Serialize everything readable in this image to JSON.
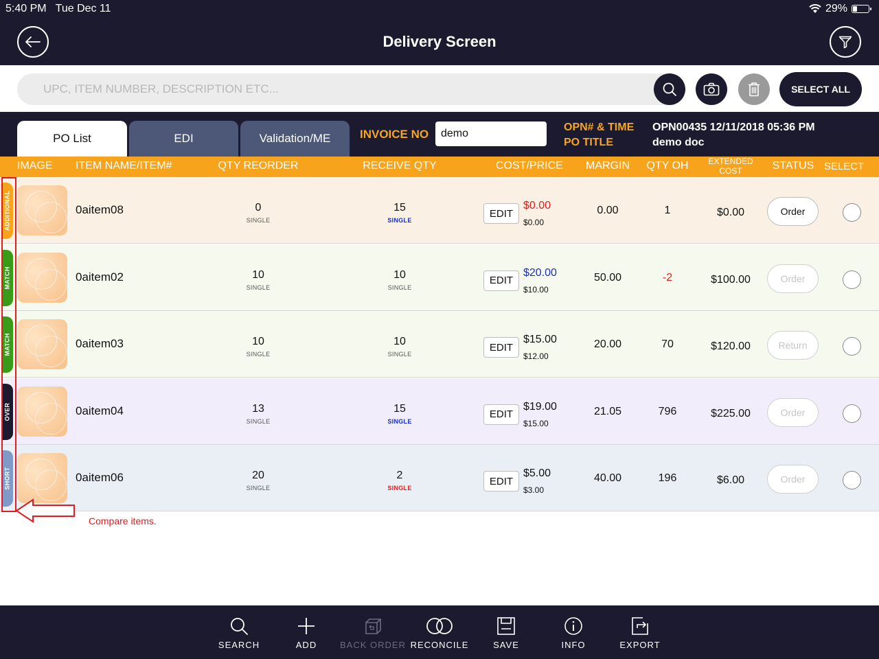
{
  "status_bar": {
    "time": "5:40 PM",
    "date": "Tue Dec 11",
    "battery": "29%",
    "battery_level": 0.29
  },
  "header": {
    "title": "Delivery Screen",
    "back_icon": "arrow-left-icon",
    "filter_icon": "funnel-icon"
  },
  "search": {
    "placeholder": "UPC, ITEM NUMBER, DESCRIPTION ETC...",
    "value": "",
    "select_all_label": "SELECT ALL"
  },
  "tabs": [
    {
      "label": "PO List",
      "active": true
    },
    {
      "label": "EDI",
      "active": false
    },
    {
      "label": "Validation/ME",
      "active": false
    }
  ],
  "invoice": {
    "label": "INVOICE NO",
    "value": "demo"
  },
  "po_info": {
    "opn_label": "OPN# & TIME",
    "title_label": "PO TITLE",
    "opn_value": "OPN00435  12/11/2018 05:36 PM",
    "title_value": "demo doc"
  },
  "columns": {
    "image": "IMAGE",
    "item": "ITEM NAME/ITEM#",
    "qty_reorder": "QTY REORDER",
    "receive_qty": "RECEIVE QTY",
    "cost_price": "COST/PRICE",
    "margin": "MARGIN",
    "qty_oh": "QTY OH",
    "extended_cost_1": "EXTENDED",
    "extended_cost_2": "COST",
    "status": "STATUS",
    "select": "SELECT"
  },
  "edit_label": "EDIT",
  "rows": [
    {
      "tag": "ADDITIONAL",
      "tag_color": "#f8a31c",
      "bg": "#faf1e4",
      "name": "0aitem08",
      "qty_reorder": "0",
      "qty_reorder_unit": "SINGLE",
      "receive_qty": "15",
      "receive_unit": "SINGLE",
      "receive_unit_style": "blue",
      "price": "$0.00",
      "price_style": "red",
      "cost": "$0.00",
      "margin": "0.00",
      "qty_oh": "1",
      "qty_oh_style": "",
      "extended_cost": "$0.00",
      "status": "Order",
      "status_style": ""
    },
    {
      "tag": "MATCH",
      "tag_color": "#3a9a1a",
      "bg": "#f6faee",
      "name": "0aitem02",
      "qty_reorder": "10",
      "qty_reorder_unit": "SINGLE",
      "receive_qty": "10",
      "receive_unit": "SINGLE",
      "receive_unit_style": "",
      "price": "$20.00",
      "price_style": "blue",
      "cost": "$10.00",
      "margin": "50.00",
      "qty_oh": "-2",
      "qty_oh_style": "neg",
      "extended_cost": "$100.00",
      "status": "Order",
      "status_style": "dim"
    },
    {
      "tag": "MATCH",
      "tag_color": "#3a9a1a",
      "bg": "#f6faee",
      "name": "0aitem03",
      "qty_reorder": "10",
      "qty_reorder_unit": "SINGLE",
      "receive_qty": "10",
      "receive_unit": "SINGLE",
      "receive_unit_style": "",
      "price": "$15.00",
      "price_style": "",
      "cost": "$12.00",
      "margin": "20.00",
      "qty_oh": "70",
      "qty_oh_style": "",
      "extended_cost": "$120.00",
      "status": "Return",
      "status_style": "dim"
    },
    {
      "tag": "OVER",
      "tag_color": "#1b1a2e",
      "bg": "#f1edfa",
      "name": "0aitem04",
      "qty_reorder": "13",
      "qty_reorder_unit": "SINGLE",
      "receive_qty": "15",
      "receive_unit": "SINGLE",
      "receive_unit_style": "blue",
      "price": "$19.00",
      "price_style": "",
      "cost": "$15.00",
      "margin": "21.05",
      "qty_oh": "796",
      "qty_oh_style": "",
      "extended_cost": "$225.00",
      "status": "Order",
      "status_style": "dim"
    },
    {
      "tag": "SHORT",
      "tag_color": "#7f9ac6",
      "bg": "#e9eff5",
      "name": "0aitem06",
      "qty_reorder": "20",
      "qty_reorder_unit": "SINGLE",
      "receive_qty": "2",
      "receive_unit": "SINGLE",
      "receive_unit_style": "red",
      "price": "$5.00",
      "price_style": "",
      "cost": "$3.00",
      "margin": "40.00",
      "qty_oh": "196",
      "qty_oh_style": "",
      "extended_cost": "$6.00",
      "status": "Order",
      "status_style": "dim"
    }
  ],
  "annotation": {
    "text": "Compare items.",
    "color": "#e21a22"
  },
  "bottom_nav": [
    {
      "label": "SEARCH",
      "icon": "search-icon",
      "enabled": true
    },
    {
      "label": "ADD",
      "icon": "plus-icon",
      "enabled": true
    },
    {
      "label": "BACK ORDER",
      "icon": "back-order-icon",
      "enabled": false
    },
    {
      "label": "RECONCILE",
      "icon": "reconcile-icon",
      "enabled": true
    },
    {
      "label": "SAVE",
      "icon": "save-icon",
      "enabled": true
    },
    {
      "label": "INFO",
      "icon": "info-icon",
      "enabled": true
    },
    {
      "label": "EXPORT",
      "icon": "export-icon",
      "enabled": true
    }
  ],
  "colors": {
    "dark": "#1b1a2e",
    "accent": "#f8a31c",
    "tab_inactive": "#4d5878"
  }
}
